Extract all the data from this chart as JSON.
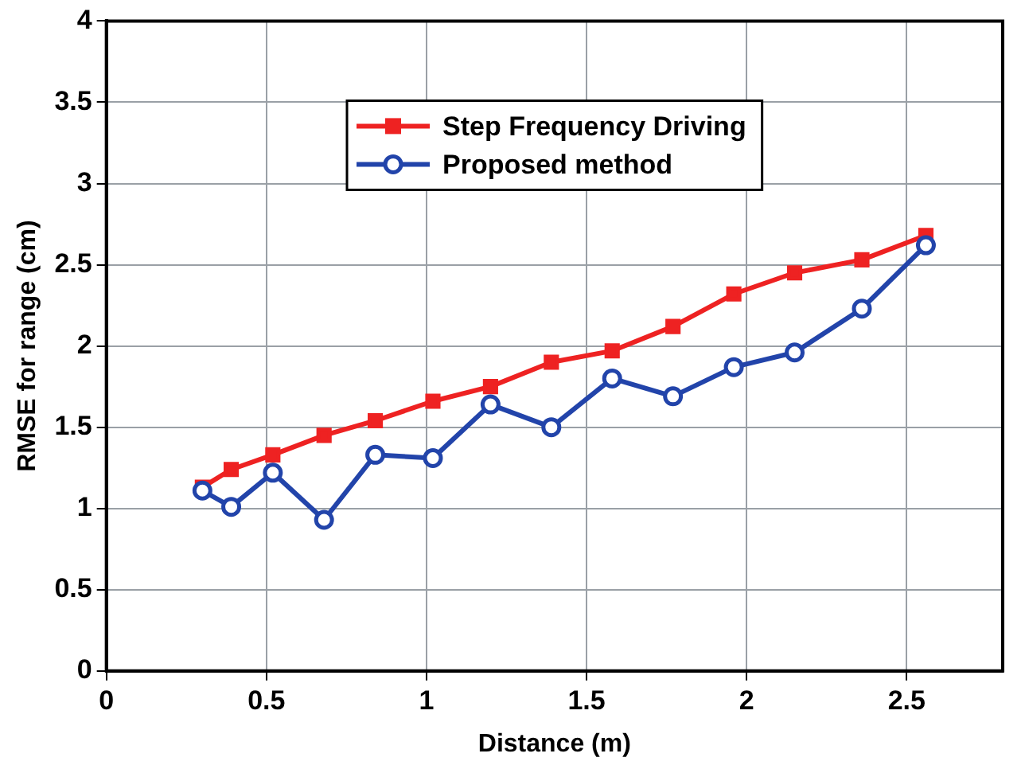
{
  "chart_data": {
    "type": "line",
    "xlabel": "Distance (m)",
    "ylabel": "RMSE for range (cm)",
    "x": [
      0.3,
      0.39,
      0.52,
      0.68,
      0.84,
      1.02,
      1.2,
      1.39,
      1.58,
      1.77,
      1.96,
      2.15,
      2.36,
      2.56
    ],
    "series": [
      {
        "name": "Step Frequency Driving",
        "color": "#ee2222",
        "marker": "square",
        "values": [
          1.13,
          1.24,
          1.33,
          1.45,
          1.54,
          1.66,
          1.75,
          1.9,
          1.97,
          2.12,
          2.32,
          2.45,
          2.53,
          2.68
        ]
      },
      {
        "name": "Proposed method",
        "color": "#2244aa",
        "marker": "circle",
        "values": [
          1.11,
          1.01,
          1.22,
          0.93,
          1.33,
          1.31,
          1.64,
          1.5,
          1.8,
          1.69,
          1.87,
          1.96,
          2.23,
          2.62
        ]
      }
    ],
    "xlim": [
      0,
      2.8
    ],
    "xticks": [
      0,
      0.5,
      1,
      1.5,
      2,
      2.5
    ],
    "ylim": [
      0,
      4
    ],
    "yticks": [
      0,
      0.5,
      1,
      1.5,
      2,
      2.5,
      3,
      3.5,
      4
    ],
    "grid": true,
    "legend": "top",
    "line_style": "solid"
  }
}
